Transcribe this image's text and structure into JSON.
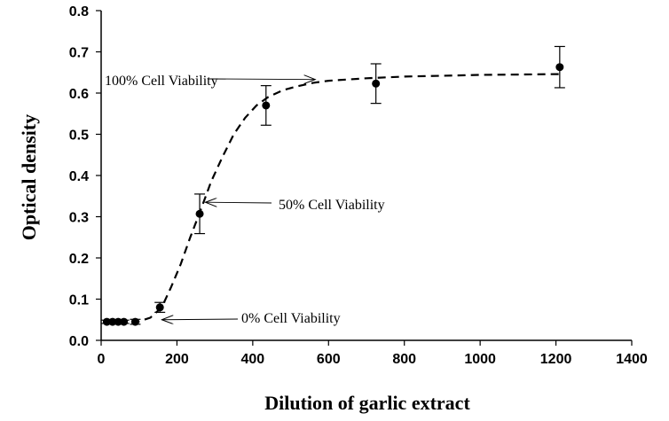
{
  "chart_data": {
    "type": "scatter",
    "xlabel": "Dilution of garlic extract",
    "ylabel": "Optical density",
    "xlim": [
      0,
      1400
    ],
    "ylim": [
      0,
      0.8
    ],
    "x_ticks": [
      0,
      200,
      400,
      600,
      800,
      1000,
      1200,
      1400
    ],
    "y_ticks": [
      0.0,
      0.1,
      0.2,
      0.3,
      0.4,
      0.5,
      0.6,
      0.7,
      0.8
    ],
    "y_tick_labels": [
      "0.0",
      "0.1",
      "0.2",
      "0.3",
      "0.4",
      "0.5",
      "0.6",
      "0.7",
      "0.8"
    ],
    "grid": false,
    "series": [
      {
        "points": [
          {
            "x": 15,
            "y": 0.045,
            "err": 0.004
          },
          {
            "x": 30,
            "y": 0.045,
            "err": 0.004
          },
          {
            "x": 45,
            "y": 0.045,
            "err": 0.004
          },
          {
            "x": 60,
            "y": 0.045,
            "err": 0.004
          },
          {
            "x": 90,
            "y": 0.045,
            "err": 0.006
          },
          {
            "x": 155,
            "y": 0.08,
            "err": 0.012
          },
          {
            "x": 260,
            "y": 0.307,
            "err": 0.048
          },
          {
            "x": 435,
            "y": 0.57,
            "err": 0.048
          },
          {
            "x": 725,
            "y": 0.623,
            "err": 0.048
          },
          {
            "x": 1210,
            "y": 0.663,
            "err": 0.05
          }
        ],
        "color": "#000000"
      }
    ],
    "fit_curve": [
      {
        "x": 10,
        "y": 0.045
      },
      {
        "x": 60,
        "y": 0.045
      },
      {
        "x": 100,
        "y": 0.046
      },
      {
        "x": 130,
        "y": 0.055
      },
      {
        "x": 160,
        "y": 0.08
      },
      {
        "x": 185,
        "y": 0.13
      },
      {
        "x": 210,
        "y": 0.185
      },
      {
        "x": 235,
        "y": 0.25
      },
      {
        "x": 260,
        "y": 0.31
      },
      {
        "x": 290,
        "y": 0.385
      },
      {
        "x": 320,
        "y": 0.445
      },
      {
        "x": 350,
        "y": 0.5
      },
      {
        "x": 380,
        "y": 0.54
      },
      {
        "x": 410,
        "y": 0.57
      },
      {
        "x": 440,
        "y": 0.59
      },
      {
        "x": 480,
        "y": 0.607
      },
      {
        "x": 520,
        "y": 0.617
      },
      {
        "x": 560,
        "y": 0.625
      },
      {
        "x": 600,
        "y": 0.63
      },
      {
        "x": 700,
        "y": 0.636
      },
      {
        "x": 800,
        "y": 0.64
      },
      {
        "x": 900,
        "y": 0.642
      },
      {
        "x": 1000,
        "y": 0.644
      },
      {
        "x": 1100,
        "y": 0.645
      },
      {
        "x": 1210,
        "y": 0.646
      }
    ],
    "annotations": [
      {
        "text": "100% Cell Viability",
        "arrow_to": {
          "x": 565,
          "y": 0.633
        }
      },
      {
        "text": "50% Cell Viability",
        "arrow_to": {
          "x": 275,
          "y": 0.335
        }
      },
      {
        "text": "0% Cell Viability",
        "arrow_to": {
          "x": 160,
          "y": 0.05
        }
      }
    ]
  }
}
